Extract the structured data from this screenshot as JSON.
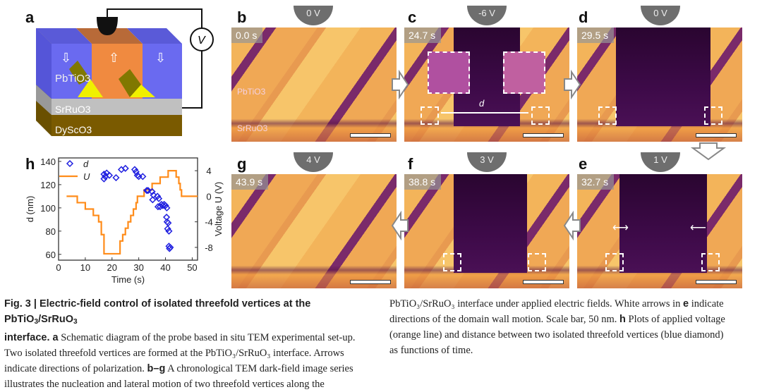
{
  "panel_a": {
    "label": "a",
    "layers": [
      "PbTiO3",
      "SrRuO3",
      "DyScO3"
    ],
    "voltmeter": "V",
    "colors": {
      "up_domain": "#f08a40",
      "down_domain": "#6a6af0",
      "srruo3": "#c0c0c0",
      "dysco3": "#7a5a00",
      "vertex": "#f0f000"
    }
  },
  "tem_panels": [
    {
      "label": "b",
      "voltage": "0 V",
      "time": "0.0 s",
      "mat1": "PbTiO3",
      "mat2": "SrRuO3"
    },
    {
      "label": "c",
      "voltage": "-6 V",
      "time": "24.7 s",
      "distance_label": "d"
    },
    {
      "label": "d",
      "voltage": "0 V",
      "time": "29.5 s"
    },
    {
      "label": "e",
      "voltage": "1 V",
      "time": "32.7 s"
    },
    {
      "label": "f",
      "voltage": "3 V",
      "time": "38.8 s"
    },
    {
      "label": "g",
      "voltage": "4 V",
      "time": "43.9 s"
    }
  ],
  "chart_data": {
    "type": "scatter+line",
    "label": "h",
    "xlabel": "Time (s)",
    "ylabel_left": "d (nm)",
    "ylabel_right": "Voltage U (V)",
    "xlim": [
      0,
      52
    ],
    "ylim_left": [
      55,
      143
    ],
    "ylim_right": [
      -10,
      6
    ],
    "xticks": [
      0,
      10,
      20,
      30,
      40,
      50
    ],
    "yticks_left": [
      60,
      80,
      100,
      120,
      140
    ],
    "yticks_right": [
      -8,
      -4,
      0,
      4
    ],
    "legend": {
      "position": "top-left",
      "entries": [
        "d",
        "U"
      ]
    },
    "colors": {
      "d": "#2020e0",
      "U": "#ff8c1a"
    },
    "series": [
      {
        "name": "d",
        "kind": "scatter",
        "marker": "diamond",
        "axis": "left",
        "x": [
          17,
          17,
          17.5,
          18,
          19,
          21.5,
          23.5,
          25,
          28.5,
          29,
          29.5,
          30,
          31.5,
          33,
          33.5,
          35,
          35.5,
          35.2,
          37,
          37.5,
          37.2,
          38,
          38.5,
          39,
          39.5,
          40,
          40.5,
          40.4,
          40.6,
          41,
          40.8,
          41.3,
          41.3,
          41.5,
          41.8
        ],
        "y": [
          125,
          129,
          127,
          130,
          128,
          126,
          133,
          134,
          133,
          131,
          128,
          127,
          127,
          115,
          115,
          114,
          111,
          107,
          110,
          108,
          101,
          101,
          103,
          102,
          103,
          102,
          100,
          92,
          88,
          87,
          82,
          80,
          67,
          65,
          66
        ]
      },
      {
        "name": "U",
        "kind": "step-line",
        "axis": "right",
        "x": [
          3,
          7,
          7,
          10,
          10,
          13,
          13,
          15,
          15,
          16,
          16,
          17,
          17,
          23,
          23,
          24,
          24,
          25,
          25,
          26,
          26,
          27,
          27,
          28,
          28,
          29,
          29,
          29.5,
          29.5,
          32,
          32,
          35,
          35,
          38,
          38,
          41,
          41,
          44,
          44,
          45,
          45,
          45.5,
          45.5,
          46,
          46,
          52
        ],
        "y": [
          0,
          0,
          -1,
          -1,
          -2,
          -2,
          -3,
          -3,
          -4,
          -4,
          -6,
          -6,
          -9,
          -9,
          -7,
          -7,
          -6,
          -6,
          -5,
          -5,
          -4,
          -4,
          -3,
          -3,
          -2,
          -2,
          -1,
          -1,
          0,
          0,
          1,
          1,
          2,
          2,
          3,
          3,
          4,
          4,
          3,
          3,
          2,
          2,
          1,
          1,
          0,
          0
        ]
      }
    ]
  },
  "caption": {
    "fig": "Fig. 3 | Electric-field control of isolated threefold vertices at the PbTiO",
    "fig_tail": "/SrRuO",
    "fig_line2": "interface.",
    "a_label": "a",
    "a_text": "Schematic diagram of the probe based in situ TEM experimental set-up.",
    "line3": "Two isolated threefold vertices are formed at the PbTiO₃/SrRuO₃ interface. Arrows",
    "line4a": "indicate directions of polarization.",
    "bg_label": "b–g",
    "line4b": "A chronological TEM dark-field image series",
    "line5": "illustrates the nucleation and lateral motion of two threefold vertices along the",
    "r1a": "PbTiO₃/SrRuO₃ interface under applied electric fields. White arrows in",
    "e_label": "e",
    "r1b": "indicate",
    "r2a": "directions of the domain wall motion. Scale bar, 50 nm.",
    "h_label": "h",
    "r2b": "Plots of applied voltage",
    "r3": "(orange line) and distance between two isolated threefold vertices (blue diamond)",
    "r4": "as functions of time."
  }
}
